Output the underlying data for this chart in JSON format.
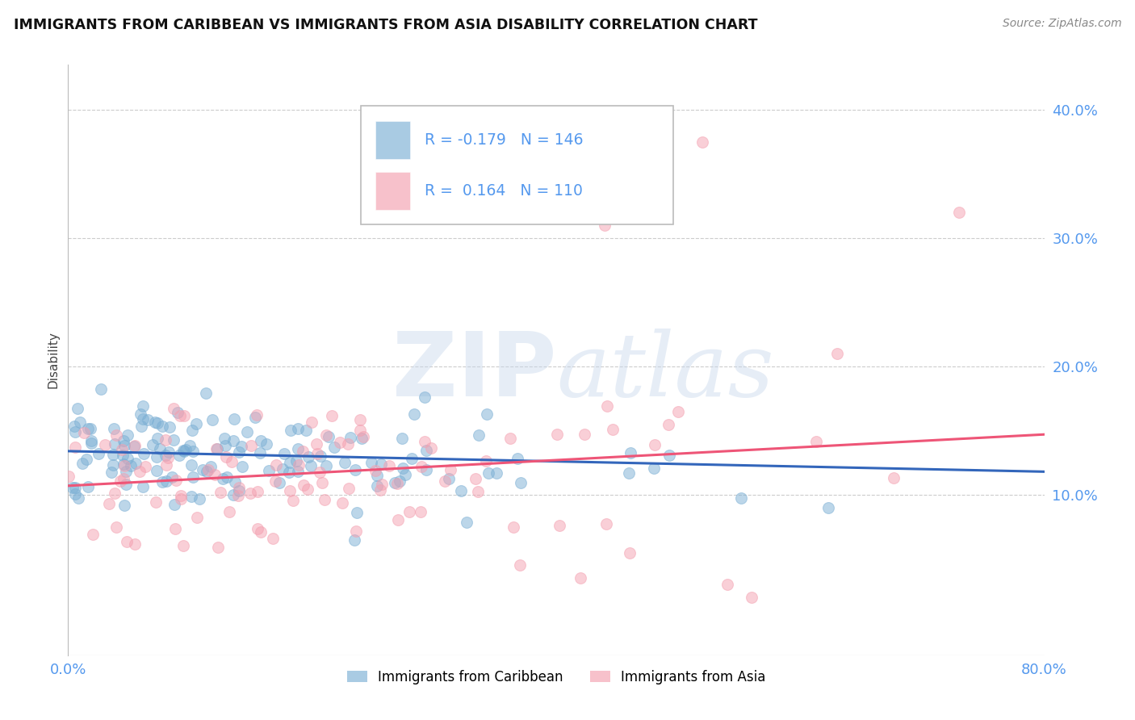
{
  "title": "IMMIGRANTS FROM CARIBBEAN VS IMMIGRANTS FROM ASIA DISABILITY CORRELATION CHART",
  "source": "Source: ZipAtlas.com",
  "ylabel": "Disability",
  "caribbean_R": -0.179,
  "caribbean_N": 146,
  "asia_R": 0.164,
  "asia_N": 110,
  "caribbean_color": "#7BAFD4",
  "asia_color": "#F4A0B0",
  "trendline_caribbean_color": "#3366BB",
  "trendline_asia_color": "#EE5577",
  "watermark_zip": "ZIP",
  "watermark_atlas": "atlas",
  "legend_label_caribbean": "Immigrants from Caribbean",
  "legend_label_asia": "Immigrants from Asia",
  "background_color": "#FFFFFF",
  "grid_color": "#CCCCCC",
  "tick_label_color": "#5599EE",
  "title_color": "#111111",
  "source_color": "#888888",
  "ylabel_color": "#444444",
  "xlim": [
    0.0,
    0.8
  ],
  "ylim": [
    -0.025,
    0.435
  ],
  "ytick_vals": [
    0.1,
    0.2,
    0.3,
    0.4
  ],
  "ytick_labels": [
    "10.0%",
    "20.0%",
    "30.0%",
    "40.0%"
  ],
  "carib_trend_y0": 0.134,
  "carib_trend_y1": 0.118,
  "asia_trend_y0": 0.107,
  "asia_trend_y1": 0.147
}
